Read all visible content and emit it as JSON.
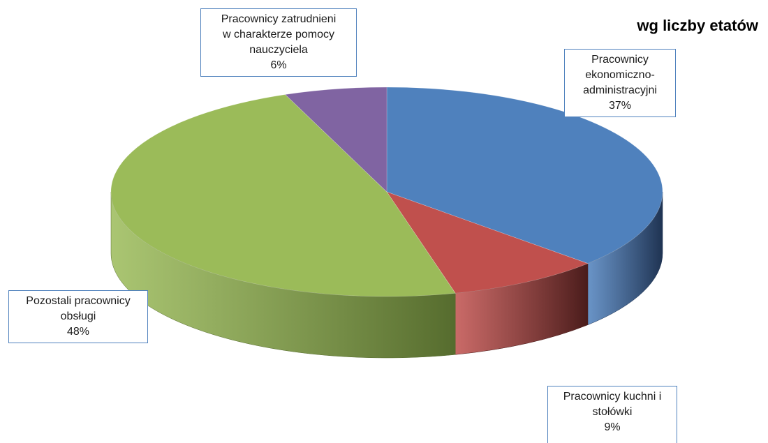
{
  "chart_data": {
    "type": "pie",
    "title": "wg liczby etatów",
    "slices": [
      {
        "name": "Pracownicy ekonomiczno-administracyjni",
        "value": 37,
        "label_lines": [
          "Pracownicy",
          "ekonomiczno-",
          "administracyjni"
        ],
        "value_label": "37%",
        "color": "#4f81bd",
        "side_color": "#1f3352"
      },
      {
        "name": "Pracownicy kuchni i stołówki",
        "value": 9,
        "label_lines": [
          "Pracownicy kuchni i",
          "stołówki"
        ],
        "value_label": "9%",
        "color": "#c0504d",
        "side_color": "#4a1c1b"
      },
      {
        "name": "Pozostali pracownicy obsługi",
        "value": 48,
        "label_lines": [
          "Pozostali pracownicy",
          "obsługi"
        ],
        "value_label": "48%",
        "color": "#9bbb59",
        "side_color": "#566c2e"
      },
      {
        "name": "Pracownicy zatrudnieni w charakterze pomocy nauczyciela",
        "value": 6,
        "label_lines": [
          "Pracownicy zatrudnieni",
          "w charakterze pomocy",
          "nauczyciela"
        ],
        "value_label": "6%",
        "color": "#8064a2",
        "side_color": "#3e2f52"
      }
    ],
    "legend": "none"
  }
}
